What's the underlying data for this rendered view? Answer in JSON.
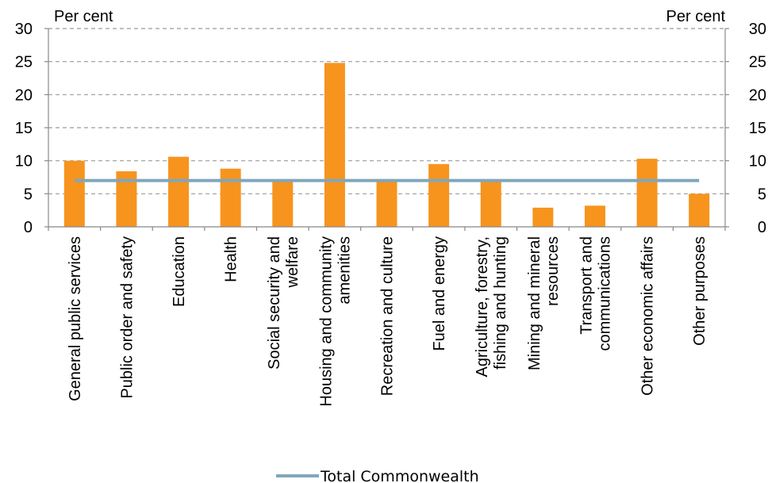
{
  "chart_data": {
    "type": "bar",
    "categories": [
      [
        "General public services"
      ],
      [
        "Public order and safety"
      ],
      [
        "Education"
      ],
      [
        "Health"
      ],
      [
        "Social security and",
        "welfare"
      ],
      [
        "Housing and community",
        "amenities"
      ],
      [
        "Recreation and culture"
      ],
      [
        "Fuel and energy"
      ],
      [
        "Agriculture, forestry,",
        "fishing and hunting"
      ],
      [
        "Mining and mineral",
        "resources"
      ],
      [
        "Transport and",
        "communications"
      ],
      [
        "Other economic affairs"
      ],
      [
        "Other purposes"
      ]
    ],
    "values": [
      10.0,
      8.4,
      10.6,
      8.8,
      6.8,
      24.8,
      6.8,
      9.5,
      6.8,
      2.9,
      3.2,
      10.3,
      5.0
    ],
    "reference_line": {
      "name": "Total Commonwealth",
      "value": 7.0
    },
    "ylim": [
      0,
      30
    ],
    "yticks": [
      0,
      5,
      10,
      15,
      20,
      25,
      30
    ],
    "ylabel_left": "Per cent",
    "ylabel_right": "Per cent",
    "grid": "horizontal dashed",
    "legend_position": "bottom",
    "colors": {
      "bar": "#F7941D",
      "line": "#7FA7BB",
      "grid": "#9a9a9a",
      "axis": "#888888"
    }
  }
}
